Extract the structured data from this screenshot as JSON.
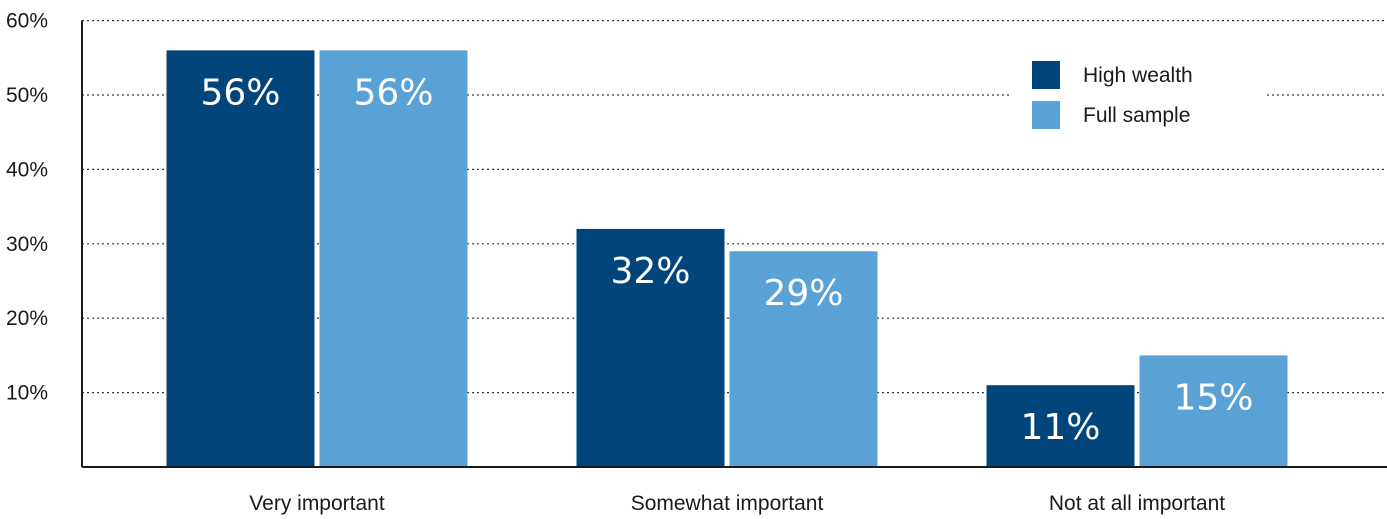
{
  "chart_data": {
    "type": "bar",
    "title": "",
    "xlabel": "",
    "ylabel": "",
    "categories": [
      "Very important",
      "Somewhat important",
      "Not at all important"
    ],
    "series": [
      {
        "name": "High wealth",
        "color": "#02457a",
        "values": [
          56,
          32,
          11
        ],
        "labels": [
          "56%",
          "32%",
          "11%"
        ]
      },
      {
        "name": "Full sample",
        "color": "#5aa2d5",
        "values": [
          56,
          29,
          15
        ],
        "labels": [
          "56%",
          "29%",
          "15%"
        ]
      }
    ],
    "ylim": [
      0,
      60
    ],
    "yticks": [
      10,
      20,
      30,
      40,
      50,
      60
    ],
    "ytick_labels": [
      "10%",
      "20%",
      "30%",
      "40%",
      "50%",
      "60%"
    ],
    "grid": true,
    "legend_position": "top-right"
  }
}
